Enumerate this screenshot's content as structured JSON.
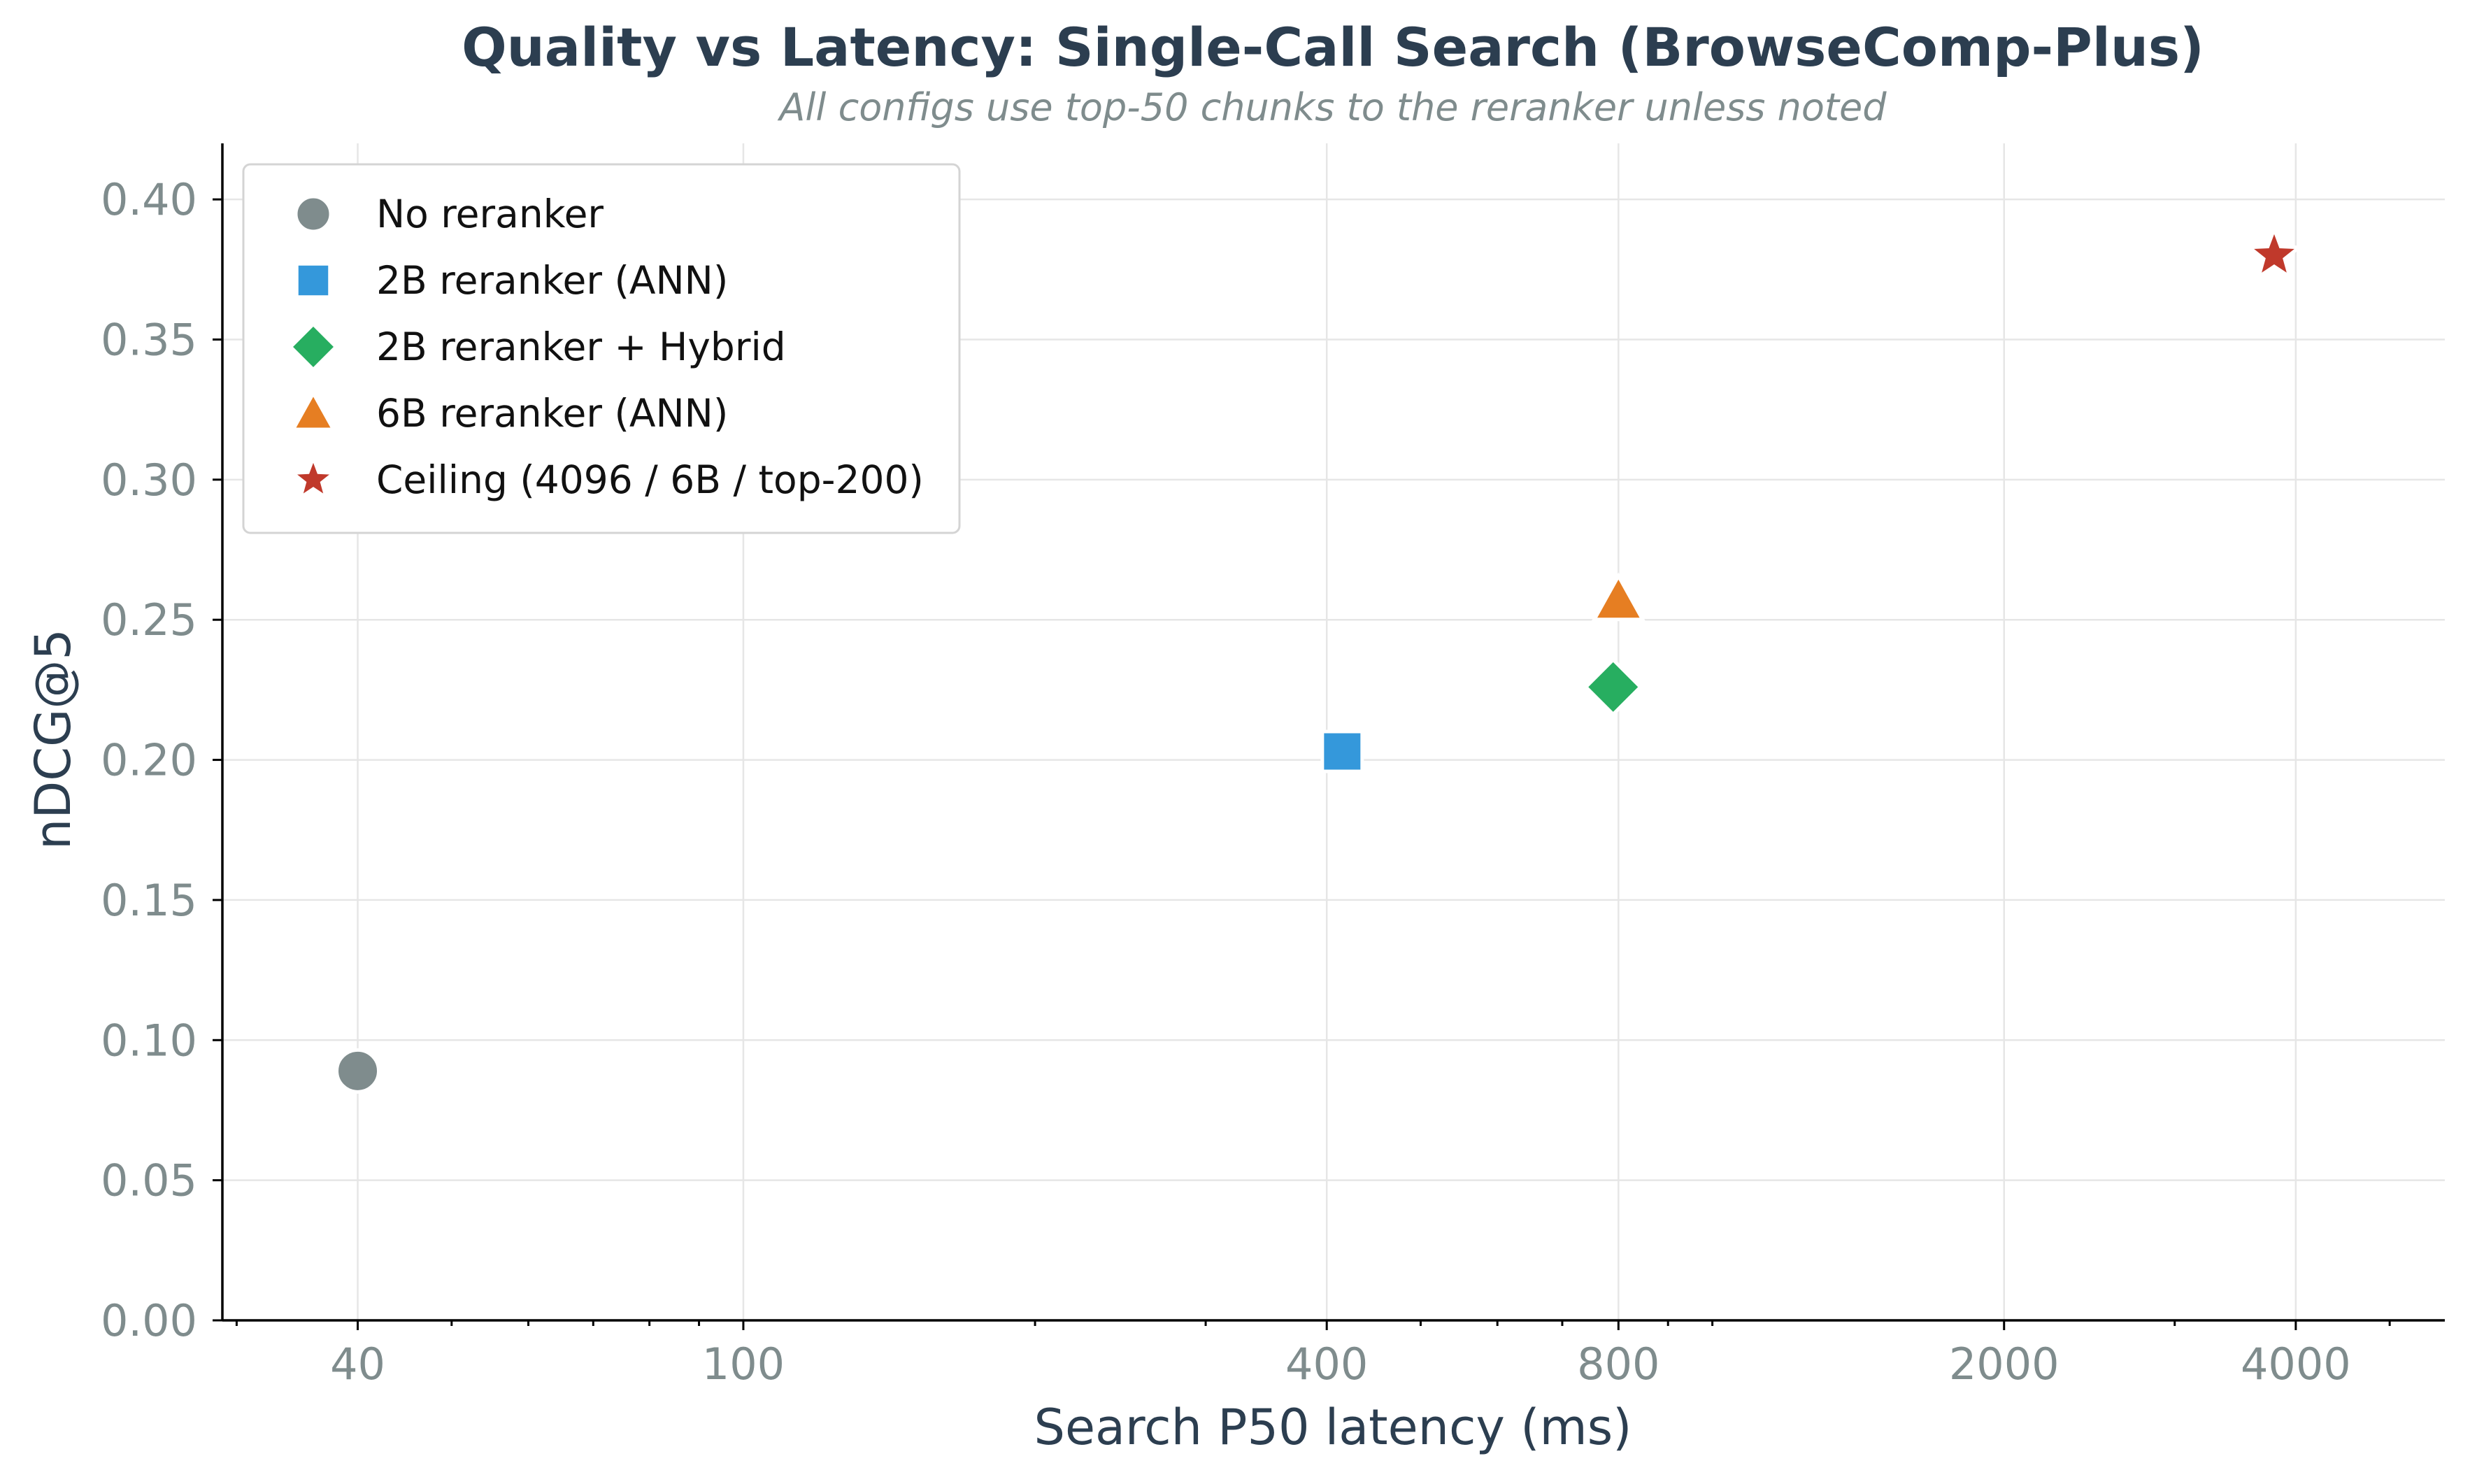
{
  "chart_data": {
    "type": "scatter",
    "title": "Quality vs Latency: Single-Call Search (BrowseComp-Plus)",
    "subtitle": "All configs use top-50 chunks to the reranker unless noted",
    "xlabel": "Search P50 latency (ms)",
    "ylabel": "nDCG@5",
    "xscale": "log",
    "xlim": [
      29,
      5700
    ],
    "ylim": [
      0,
      0.42
    ],
    "xticks": [
      40,
      100,
      400,
      800,
      2000,
      4000
    ],
    "xtick_labels": [
      "40",
      "100",
      "400",
      "800",
      "2000",
      "4000"
    ],
    "yticks": [
      0.0,
      0.05,
      0.1,
      0.15,
      0.2,
      0.25,
      0.3,
      0.35,
      0.4
    ],
    "ytick_labels": [
      "0.00",
      "0.05",
      "0.10",
      "0.15",
      "0.20",
      "0.25",
      "0.30",
      "0.35",
      "0.40"
    ],
    "grid": true,
    "legend_position": "top-left",
    "series": [
      {
        "name": "No reranker",
        "marker": "circle",
        "color": "#7f8c8d",
        "points": [
          {
            "x": 40,
            "y": 0.089
          }
        ]
      },
      {
        "name": "2B reranker (ANN)",
        "marker": "square",
        "color": "#3498db",
        "points": [
          {
            "x": 415,
            "y": 0.203
          }
        ]
      },
      {
        "name": "2B reranker + Hybrid",
        "marker": "diamond",
        "color": "#27ae60",
        "points": [
          {
            "x": 790,
            "y": 0.226
          }
        ]
      },
      {
        "name": "6B reranker (ANN)",
        "marker": "triangle",
        "color": "#e67e22",
        "points": [
          {
            "x": 800,
            "y": 0.257
          }
        ]
      },
      {
        "name": "Ceiling (4096 / 6B / top-200)",
        "marker": "star",
        "color": "#c0392b",
        "points": [
          {
            "x": 3800,
            "y": 0.38
          }
        ]
      }
    ]
  }
}
